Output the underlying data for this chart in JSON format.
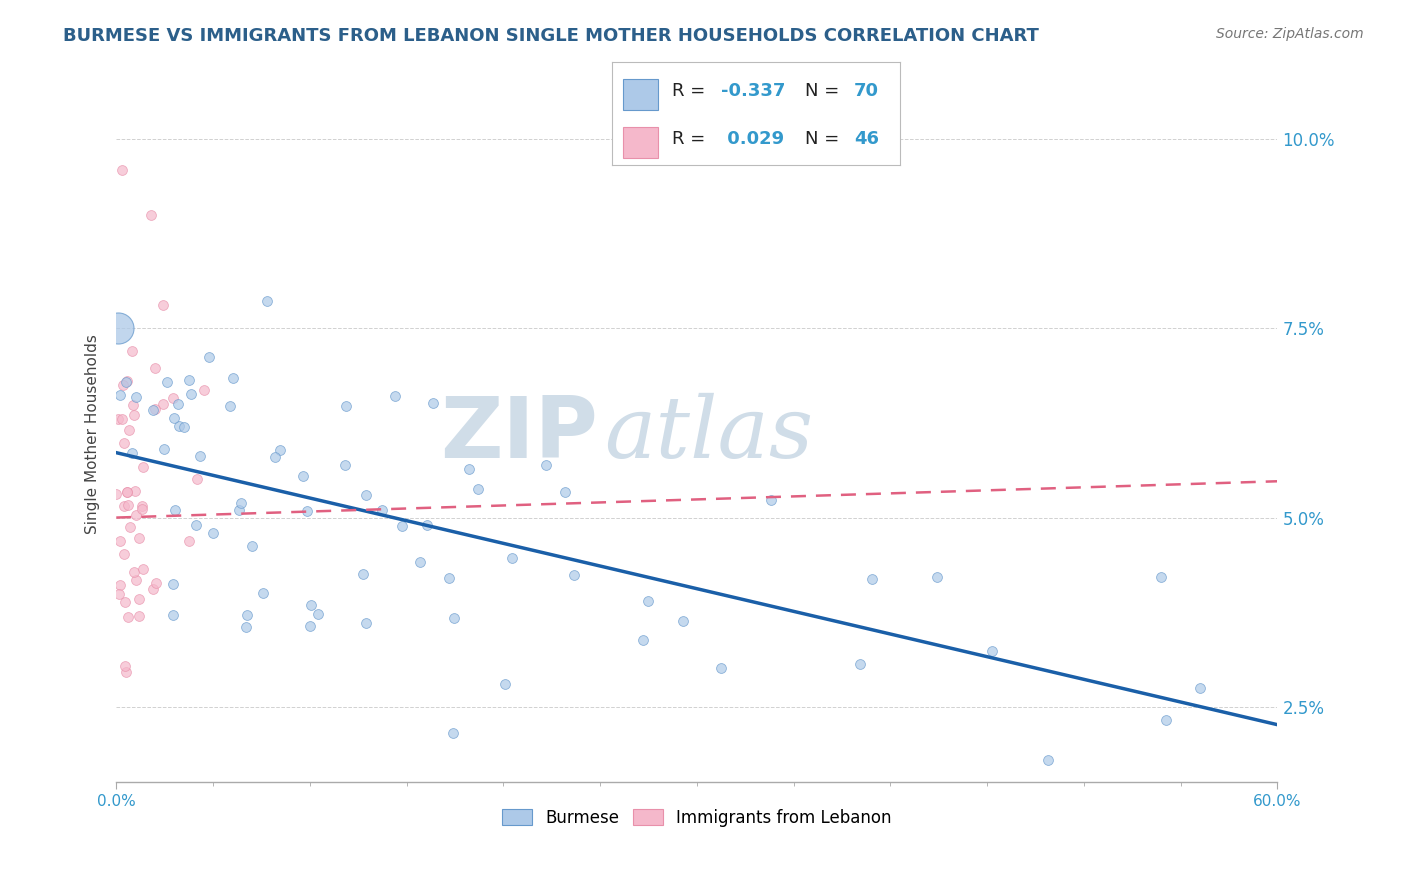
{
  "title": "BURMESE VS IMMIGRANTS FROM LEBANON SINGLE MOTHER HOUSEHOLDS CORRELATION CHART",
  "source": "Source: ZipAtlas.com",
  "ylabel": "Single Mother Households",
  "xlim": [
    0.0,
    0.6
  ],
  "ylim": [
    0.015,
    0.107
  ],
  "legend": {
    "burmese_R": "-0.337",
    "burmese_N": "70",
    "lebanon_R": "0.029",
    "lebanon_N": "46"
  },
  "burmese_color": "#adc9e8",
  "lebanon_color": "#f5b8cb",
  "burmese_edge": "#6699cc",
  "lebanon_edge": "#e890aa",
  "trendline_burmese": "#1a5fa8",
  "trendline_lebanon": "#e06080",
  "background_color": "#ffffff",
  "grid_color": "#cccccc",
  "title_color": "#2c5f8a",
  "source_color": "#777777",
  "axis_label_color": "#444444",
  "tick_color": "#3399cc",
  "watermark_color": "#d0dde8"
}
